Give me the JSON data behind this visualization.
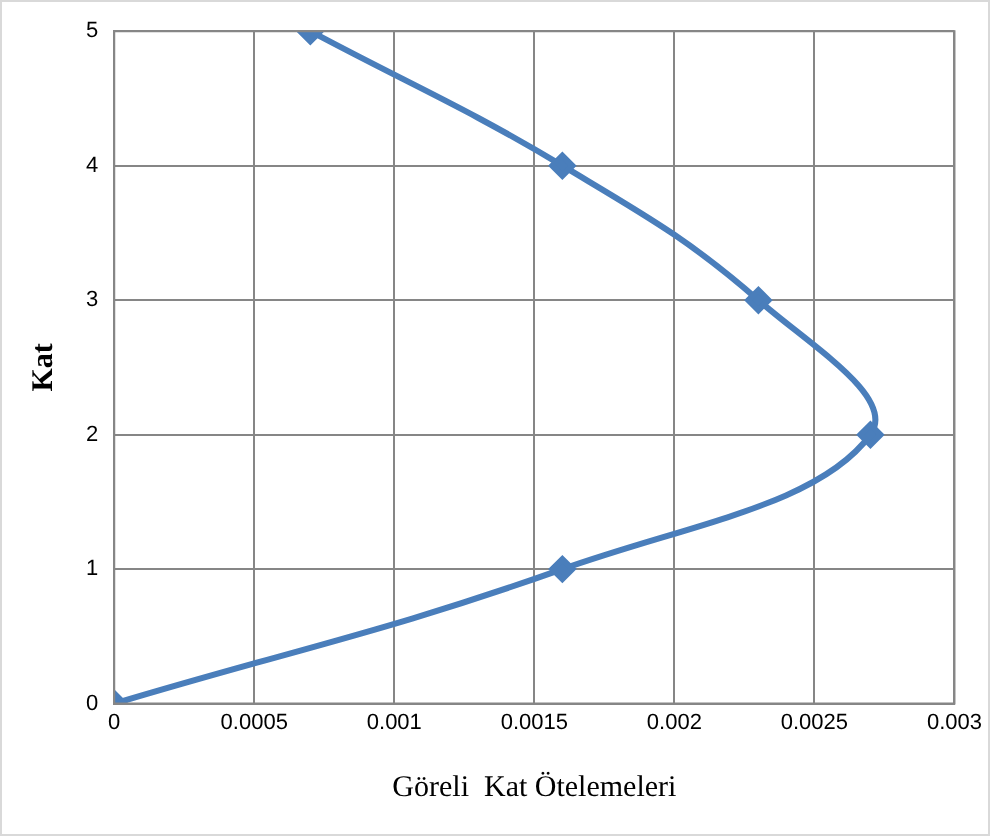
{
  "chart_data": {
    "type": "line",
    "xlabel": "Göreli  Kat Ötelemeleri",
    "ylabel": "Kat",
    "x": [
      0,
      0.0016,
      0.0027,
      0.0023,
      0.0016,
      0.0007
    ],
    "series": [
      {
        "color": "#4a7ebb",
        "values": [
          0,
          1,
          2,
          3,
          4,
          5
        ]
      }
    ],
    "xlim": [
      0,
      0.003
    ],
    "xticks": [
      0,
      0.0005,
      0.001,
      0.0015,
      0.002,
      0.0025,
      0.003
    ],
    "ylim": [
      0,
      5
    ],
    "yticks": [
      0,
      1,
      2,
      3,
      4,
      5
    ],
    "grid": true,
    "legend": false,
    "marker": "diamond",
    "line_style": "solid"
  }
}
